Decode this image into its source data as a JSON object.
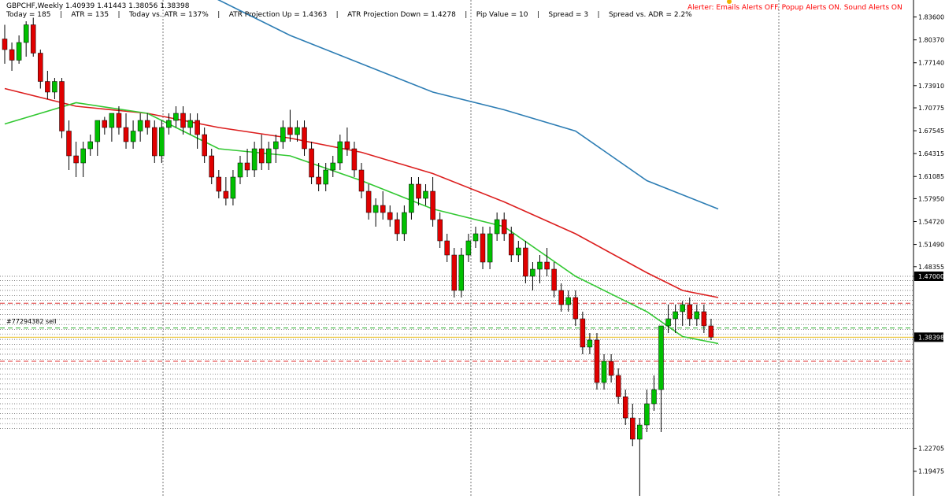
{
  "header": {
    "title": "GBPCHF,Weekly  1.40939 1.41443 1.38056 1.38398",
    "info_line": "Today = 185    |    ATR = 135    |    Today vs. ATR = 137%    |    ATR Projection Up = 1.4363    |    ATR Projection Down = 1.4278    |    Pip Value = 10    |    Spread = 3    |    Spread vs. ADR = 2.2%",
    "alerter": "Alerter:  Emails Alerts OFF.  Popup Alerts ON.  Sound Alerts ON"
  },
  "order_label": "#77294382 sell",
  "colors": {
    "bull": "#00c000",
    "bear": "#e00000",
    "ma_fast": "#32c832",
    "ma_mid": "#dc1e1e",
    "ma_slow": "#2d7db4",
    "alert_text": "#ff0000",
    "current_price_line": "#e6b400"
  },
  "chart_data": {
    "type": "candlestick",
    "symbol": "GBPCHF",
    "timeframe": "Weekly",
    "ylim": [
      1.16,
      1.86
    ],
    "y_ticks": [
      "1.83600",
      "1.80370",
      "1.77140",
      "1.73910",
      "1.70775",
      "1.67545",
      "1.64315",
      "1.61085",
      "1.57950",
      "1.54720",
      "1.51490",
      "1.48355",
      "1.47000",
      "1.38398",
      "1.22705",
      "1.19475"
    ],
    "current_price": 1.38398,
    "candles": [
      [
        1.805,
        1.825,
        1.77,
        1.79
      ],
      [
        1.79,
        1.8,
        1.76,
        1.775
      ],
      [
        1.775,
        1.81,
        1.77,
        1.8
      ],
      [
        1.8,
        1.83,
        1.78,
        1.825
      ],
      [
        1.825,
        1.835,
        1.78,
        1.785
      ],
      [
        1.785,
        1.79,
        1.735,
        1.745
      ],
      [
        1.745,
        1.76,
        1.72,
        1.73
      ],
      [
        1.73,
        1.75,
        1.72,
        1.745
      ],
      [
        1.745,
        1.75,
        1.665,
        1.675
      ],
      [
        1.675,
        1.69,
        1.62,
        1.64
      ],
      [
        1.64,
        1.66,
        1.61,
        1.63
      ],
      [
        1.63,
        1.66,
        1.61,
        1.65
      ],
      [
        1.65,
        1.67,
        1.64,
        1.66
      ],
      [
        1.66,
        1.69,
        1.64,
        1.69
      ],
      [
        1.69,
        1.695,
        1.67,
        1.68
      ],
      [
        1.68,
        1.7,
        1.66,
        1.7
      ],
      [
        1.7,
        1.71,
        1.67,
        1.68
      ],
      [
        1.68,
        1.7,
        1.65,
        1.66
      ],
      [
        1.66,
        1.69,
        1.65,
        1.675
      ],
      [
        1.675,
        1.7,
        1.66,
        1.69
      ],
      [
        1.69,
        1.7,
        1.67,
        1.68
      ],
      [
        1.68,
        1.69,
        1.63,
        1.64
      ],
      [
        1.64,
        1.69,
        1.63,
        1.68
      ],
      [
        1.68,
        1.7,
        1.67,
        1.69
      ],
      [
        1.69,
        1.71,
        1.68,
        1.7
      ],
      [
        1.7,
        1.71,
        1.67,
        1.68
      ],
      [
        1.68,
        1.7,
        1.67,
        1.69
      ],
      [
        1.69,
        1.7,
        1.65,
        1.67
      ],
      [
        1.67,
        1.68,
        1.63,
        1.64
      ],
      [
        1.64,
        1.65,
        1.6,
        1.61
      ],
      [
        1.61,
        1.62,
        1.58,
        1.59
      ],
      [
        1.59,
        1.61,
        1.57,
        1.58
      ],
      [
        1.58,
        1.62,
        1.57,
        1.61
      ],
      [
        1.61,
        1.64,
        1.6,
        1.63
      ],
      [
        1.63,
        1.65,
        1.61,
        1.62
      ],
      [
        1.62,
        1.66,
        1.61,
        1.65
      ],
      [
        1.65,
        1.67,
        1.62,
        1.63
      ],
      [
        1.63,
        1.66,
        1.62,
        1.65
      ],
      [
        1.65,
        1.67,
        1.63,
        1.66
      ],
      [
        1.66,
        1.69,
        1.65,
        1.68
      ],
      [
        1.68,
        1.705,
        1.66,
        1.67
      ],
      [
        1.67,
        1.69,
        1.66,
        1.68
      ],
      [
        1.68,
        1.69,
        1.64,
        1.65
      ],
      [
        1.65,
        1.66,
        1.6,
        1.61
      ],
      [
        1.61,
        1.63,
        1.59,
        1.6
      ],
      [
        1.6,
        1.63,
        1.59,
        1.62
      ],
      [
        1.62,
        1.64,
        1.61,
        1.63
      ],
      [
        1.63,
        1.67,
        1.62,
        1.66
      ],
      [
        1.66,
        1.68,
        1.64,
        1.65
      ],
      [
        1.65,
        1.66,
        1.61,
        1.62
      ],
      [
        1.62,
        1.63,
        1.58,
        1.59
      ],
      [
        1.59,
        1.6,
        1.55,
        1.56
      ],
      [
        1.56,
        1.58,
        1.54,
        1.57
      ],
      [
        1.57,
        1.59,
        1.55,
        1.56
      ],
      [
        1.56,
        1.57,
        1.54,
        1.55
      ],
      [
        1.55,
        1.56,
        1.52,
        1.53
      ],
      [
        1.53,
        1.57,
        1.52,
        1.56
      ],
      [
        1.56,
        1.61,
        1.55,
        1.6
      ],
      [
        1.6,
        1.61,
        1.57,
        1.58
      ],
      [
        1.58,
        1.6,
        1.57,
        1.59
      ],
      [
        1.59,
        1.61,
        1.54,
        1.55
      ],
      [
        1.55,
        1.56,
        1.51,
        1.52
      ],
      [
        1.52,
        1.53,
        1.49,
        1.5
      ],
      [
        1.5,
        1.51,
        1.44,
        1.45
      ],
      [
        1.45,
        1.51,
        1.44,
        1.5
      ],
      [
        1.5,
        1.53,
        1.49,
        1.52
      ],
      [
        1.52,
        1.54,
        1.51,
        1.53
      ],
      [
        1.53,
        1.54,
        1.48,
        1.49
      ],
      [
        1.49,
        1.54,
        1.48,
        1.53
      ],
      [
        1.53,
        1.56,
        1.52,
        1.55
      ],
      [
        1.55,
        1.56,
        1.52,
        1.53
      ],
      [
        1.53,
        1.54,
        1.49,
        1.5
      ],
      [
        1.5,
        1.52,
        1.49,
        1.51
      ],
      [
        1.51,
        1.52,
        1.46,
        1.47
      ],
      [
        1.47,
        1.49,
        1.45,
        1.48
      ],
      [
        1.48,
        1.5,
        1.46,
        1.49
      ],
      [
        1.49,
        1.51,
        1.47,
        1.48
      ],
      [
        1.48,
        1.49,
        1.44,
        1.45
      ],
      [
        1.45,
        1.46,
        1.42,
        1.43
      ],
      [
        1.43,
        1.45,
        1.42,
        1.44
      ],
      [
        1.44,
        1.45,
        1.4,
        1.41
      ],
      [
        1.41,
        1.42,
        1.36,
        1.37
      ],
      [
        1.37,
        1.39,
        1.36,
        1.38
      ],
      [
        1.38,
        1.39,
        1.31,
        1.32
      ],
      [
        1.32,
        1.36,
        1.31,
        1.35
      ],
      [
        1.35,
        1.36,
        1.32,
        1.33
      ],
      [
        1.33,
        1.34,
        1.29,
        1.3
      ],
      [
        1.3,
        1.31,
        1.26,
        1.27
      ],
      [
        1.27,
        1.29,
        1.23,
        1.24
      ],
      [
        1.24,
        1.27,
        1.16,
        1.26
      ],
      [
        1.26,
        1.31,
        1.25,
        1.29
      ],
      [
        1.29,
        1.33,
        1.28,
        1.31
      ],
      [
        1.31,
        1.4,
        1.25,
        1.4
      ],
      [
        1.4,
        1.43,
        1.39,
        1.41
      ],
      [
        1.41,
        1.43,
        1.39,
        1.42
      ],
      [
        1.42,
        1.435,
        1.4,
        1.43
      ],
      [
        1.43,
        1.44,
        1.4,
        1.41
      ],
      [
        1.41,
        1.43,
        1.4,
        1.42
      ],
      [
        1.42,
        1.43,
        1.39,
        1.4
      ],
      [
        1.4,
        1.41,
        1.38,
        1.384
      ]
    ],
    "ma_fast": [
      [
        0,
        1.685
      ],
      [
        10,
        1.715
      ],
      [
        20,
        1.7
      ],
      [
        30,
        1.65
      ],
      [
        40,
        1.64
      ],
      [
        50,
        1.605
      ],
      [
        60,
        1.565
      ],
      [
        70,
        1.54
      ],
      [
        80,
        1.47
      ],
      [
        90,
        1.42
      ],
      [
        95,
        1.385
      ],
      [
        100,
        1.375
      ]
    ],
    "ma_mid": [
      [
        0,
        1.735
      ],
      [
        10,
        1.71
      ],
      [
        20,
        1.7
      ],
      [
        30,
        1.68
      ],
      [
        40,
        1.665
      ],
      [
        50,
        1.645
      ],
      [
        60,
        1.615
      ],
      [
        70,
        1.575
      ],
      [
        80,
        1.53
      ],
      [
        90,
        1.475
      ],
      [
        95,
        1.45
      ],
      [
        100,
        1.44
      ]
    ],
    "ma_slow": [
      [
        20,
        1.91
      ],
      [
        30,
        1.86
      ],
      [
        40,
        1.81
      ],
      [
        50,
        1.77
      ],
      [
        60,
        1.73
      ],
      [
        70,
        1.705
      ],
      [
        80,
        1.675
      ],
      [
        90,
        1.605
      ],
      [
        100,
        1.565
      ]
    ],
    "levels": {
      "dotted": [
        1.47,
        1.464,
        1.457,
        1.45,
        1.443,
        1.436,
        1.43,
        1.423,
        1.416,
        1.409,
        1.402,
        1.395,
        1.388,
        1.381,
        1.374,
        1.367,
        1.36,
        1.353,
        1.346,
        1.339,
        1.332,
        1.325,
        1.318,
        1.311,
        1.304,
        1.297,
        1.29,
        1.283,
        1.276,
        1.269,
        1.262,
        1.255
      ],
      "dashed_red": [
        1.432,
        1.35
      ],
      "dashed_green": [
        1.397
      ]
    }
  }
}
